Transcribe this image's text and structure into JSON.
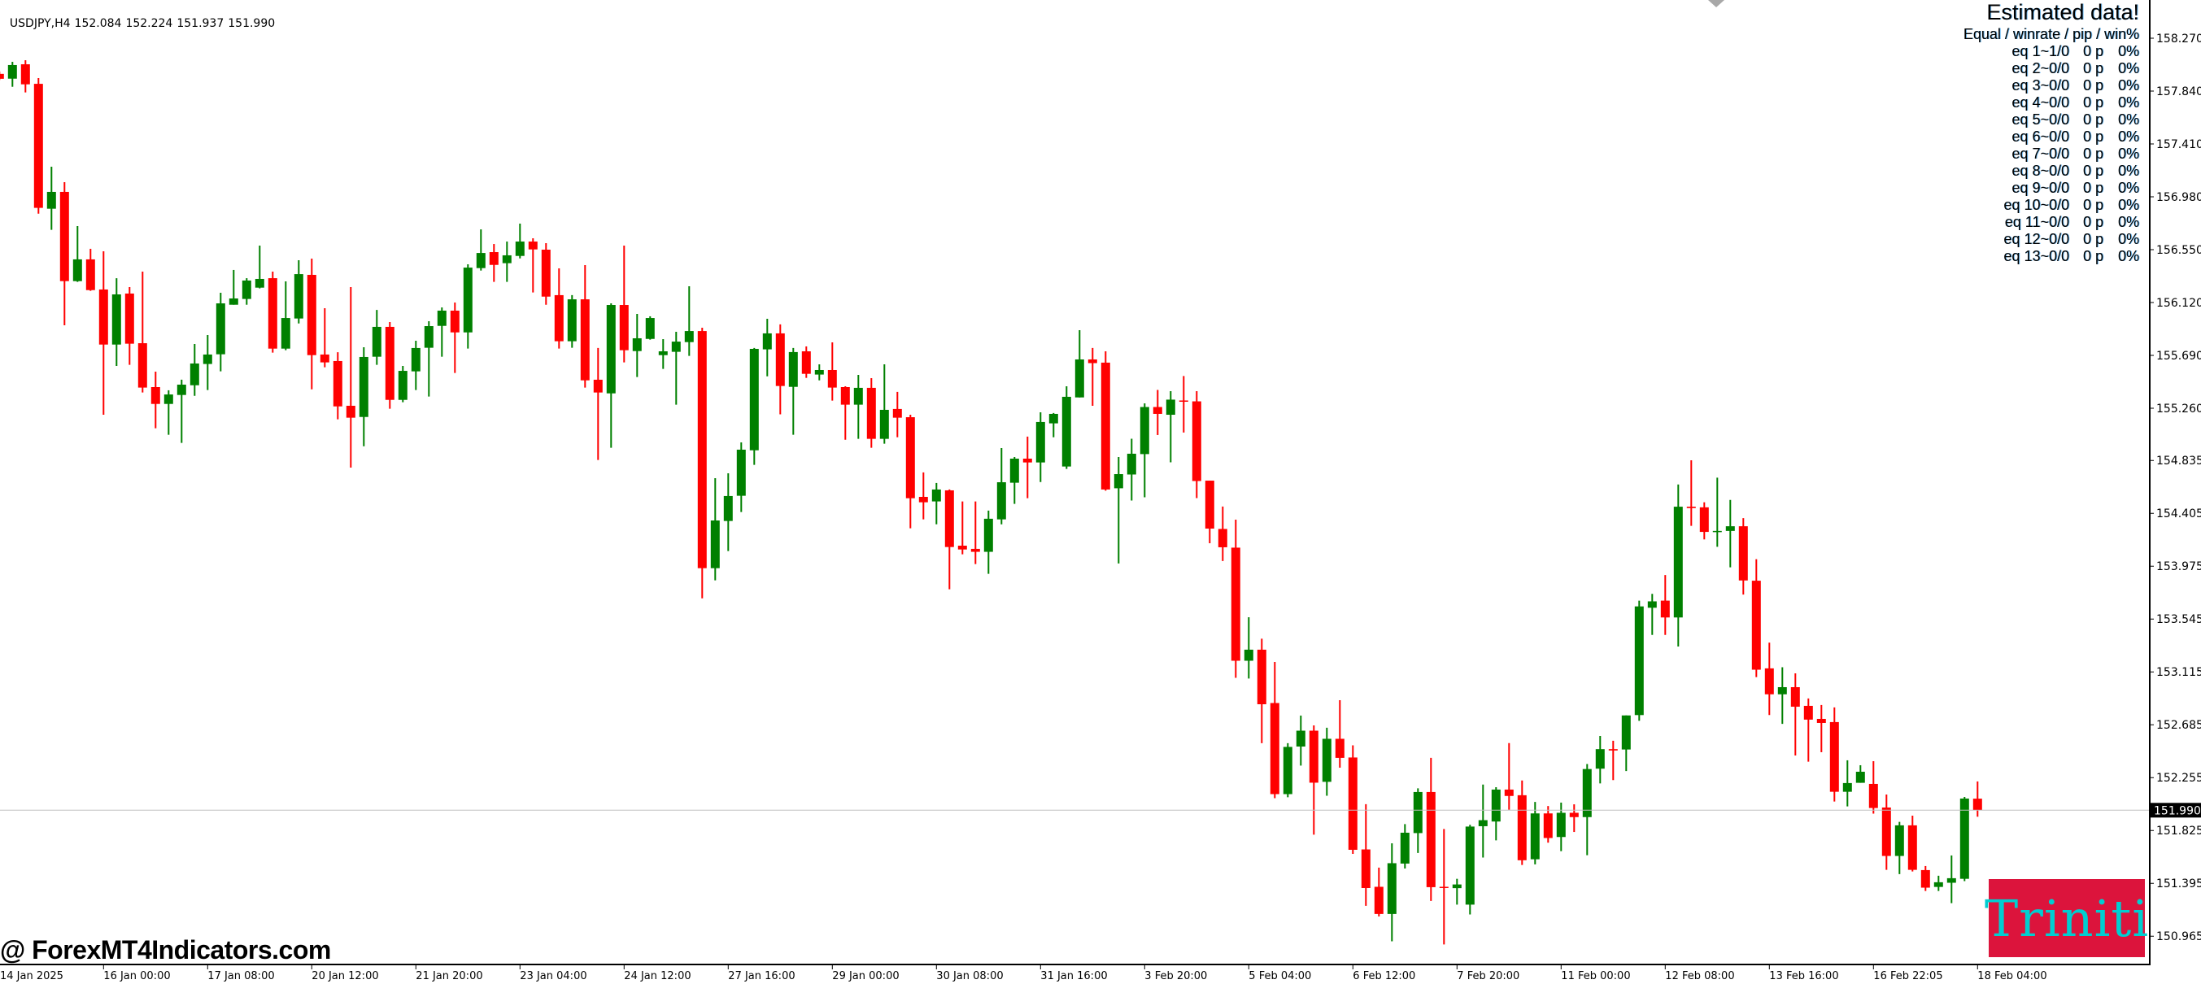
{
  "header": {
    "symbol": "USDJPY,H4",
    "ohlc": [
      "152.084",
      "152.224",
      "151.937",
      "151.990"
    ]
  },
  "indicator_panel": {
    "title": "Estimated data!",
    "subtitle": "Equal / winrate / pip / win%",
    "rows": [
      {
        "eq": "eq 1~1/0",
        "pip": "0 p",
        "win": "0%"
      },
      {
        "eq": "eq 2~0/0",
        "pip": "0 p",
        "win": "0%"
      },
      {
        "eq": "eq 3~0/0",
        "pip": "0 p",
        "win": "0%"
      },
      {
        "eq": "eq 4~0/0",
        "pip": "0 p",
        "win": "0%"
      },
      {
        "eq": "eq 5~0/0",
        "pip": "0 p",
        "win": "0%"
      },
      {
        "eq": "eq 6~0/0",
        "pip": "0 p",
        "win": "0%"
      },
      {
        "eq": "eq 7~0/0",
        "pip": "0 p",
        "win": "0%"
      },
      {
        "eq": "eq 8~0/0",
        "pip": "0 p",
        "win": "0%"
      },
      {
        "eq": "eq 9~0/0",
        "pip": "0 p",
        "win": "0%"
      },
      {
        "eq": "eq 10~0/0",
        "pip": "0 p",
        "win": "0%"
      },
      {
        "eq": "eq 11~0/0",
        "pip": "0 p",
        "win": "0%"
      },
      {
        "eq": "eq 12~0/0",
        "pip": "0 p",
        "win": "0%"
      },
      {
        "eq": "eq 13~0/0",
        "pip": "0 p",
        "win": "0%"
      }
    ]
  },
  "watermark": "@ ForexMT4Indicators.com",
  "logo_text": "Triniti",
  "colors": {
    "bull": "#008000",
    "bear": "#FF0000",
    "current_price_line": "#C0C0C0",
    "current_price_label_bg": "#000000",
    "logo_bg": "#DC143C",
    "logo_text": "#00CED1",
    "axis": "#000000"
  },
  "chart_data": {
    "type": "candlestick",
    "symbol": "USDJPY",
    "timeframe": "H4",
    "ylim": [
      150.83,
      158.34
    ],
    "grid": false,
    "current_price": "151.990",
    "y_ticks": [
      "158.270",
      "157.840",
      "157.410",
      "156.980",
      "156.550",
      "156.120",
      "155.690",
      "155.260",
      "154.835",
      "154.405",
      "153.975",
      "153.545",
      "153.115",
      "152.685",
      "152.255",
      "151.825",
      "151.395",
      "150.965"
    ],
    "x_tick_labels": [
      "14 Jan 2025",
      "16 Jan 00:00",
      "17 Jan 08:00",
      "20 Jan 12:00",
      "21 Jan 20:00",
      "23 Jan 04:00",
      "24 Jan 12:00",
      "27 Jan 16:00",
      "29 Jan 00:00",
      "30 Jan 08:00",
      "31 Jan 16:00",
      "3 Feb 20:00",
      "5 Feb 04:00",
      "6 Feb 12:00",
      "7 Feb 20:00",
      "11 Feb 00:00",
      "12 Feb 08:00",
      "13 Feb 16:00",
      "16 Feb 22:05",
      "18 Feb 04:00"
    ],
    "ohlc_fields": [
      "open",
      "high",
      "low",
      "close"
    ],
    "ohlc": [
      [
        157.98,
        158.0,
        157.93,
        157.94
      ],
      [
        157.941,
        158.078,
        157.875,
        158.052
      ],
      [
        158.058,
        158.091,
        157.829,
        157.895
      ],
      [
        157.899,
        157.946,
        156.843,
        156.89
      ],
      [
        156.883,
        157.225,
        156.711,
        157.02
      ],
      [
        157.02,
        157.099,
        155.935,
        156.294
      ],
      [
        156.294,
        156.742,
        156.288,
        156.471
      ],
      [
        156.471,
        156.557,
        156.215,
        156.221
      ],
      [
        156.226,
        156.537,
        155.207,
        155.778
      ],
      [
        155.778,
        156.318,
        155.604,
        156.186
      ],
      [
        156.193,
        156.246,
        155.613,
        155.785
      ],
      [
        155.789,
        156.371,
        155.388,
        155.428
      ],
      [
        155.432,
        155.558,
        155.097,
        155.295
      ],
      [
        155.295,
        155.406,
        155.044,
        155.372
      ],
      [
        155.368,
        155.492,
        154.978,
        155.452
      ],
      [
        155.447,
        155.783,
        155.361,
        155.624
      ],
      [
        155.62,
        155.855,
        155.408,
        155.697
      ],
      [
        155.699,
        156.199,
        155.56,
        156.113
      ],
      [
        156.102,
        156.385,
        156.102,
        156.153
      ],
      [
        156.149,
        156.318,
        156.102,
        156.299
      ],
      [
        156.241,
        156.583,
        156.235,
        156.312
      ],
      [
        156.318,
        156.371,
        155.712,
        155.745
      ],
      [
        155.745,
        156.292,
        155.732,
        155.994
      ],
      [
        155.99,
        156.464,
        155.95,
        156.351
      ],
      [
        156.345,
        156.477,
        155.414,
        155.692
      ],
      [
        155.697,
        156.074,
        155.593,
        155.633
      ],
      [
        155.644,
        155.716,
        155.17,
        155.275
      ],
      [
        155.28,
        156.246,
        154.777,
        155.183
      ],
      [
        155.189,
        155.756,
        154.951,
        155.677
      ],
      [
        155.679,
        156.06,
        155.613,
        155.922
      ],
      [
        155.922,
        155.961,
        155.256,
        155.328
      ],
      [
        155.328,
        155.604,
        155.309,
        155.564
      ],
      [
        155.56,
        155.809,
        155.408,
        155.75
      ],
      [
        155.752,
        155.968,
        155.355,
        155.928
      ],
      [
        155.93,
        156.08,
        155.679,
        156.054
      ],
      [
        156.054,
        156.12,
        155.547,
        155.877
      ],
      [
        155.877,
        156.431,
        155.745,
        156.404
      ],
      [
        156.4,
        156.715,
        156.38,
        156.523
      ],
      [
        156.53,
        156.596,
        156.288,
        156.426
      ],
      [
        156.44,
        156.616,
        156.288,
        156.504
      ],
      [
        156.499,
        156.762,
        156.479,
        156.616
      ],
      [
        156.616,
        156.643,
        156.202,
        156.552
      ],
      [
        156.55,
        156.603,
        156.102,
        156.168
      ],
      [
        156.18,
        156.398,
        155.745,
        155.805
      ],
      [
        155.805,
        156.18,
        155.752,
        156.146
      ],
      [
        156.146,
        156.424,
        155.428,
        155.487
      ],
      [
        155.492,
        155.75,
        154.839,
        155.388
      ],
      [
        155.381,
        156.113,
        154.938,
        156.1
      ],
      [
        156.1,
        156.583,
        155.633,
        155.732
      ],
      [
        155.725,
        156.027,
        155.514,
        155.829
      ],
      [
        155.824,
        156.008,
        155.818,
        155.994
      ],
      [
        155.692,
        155.822,
        155.58,
        155.723
      ],
      [
        155.719,
        155.882,
        155.289,
        155.802
      ],
      [
        155.798,
        156.252,
        155.686,
        155.888
      ],
      [
        155.888,
        155.915,
        153.714,
        153.959
      ],
      [
        153.959,
        154.691,
        153.86,
        154.347
      ],
      [
        154.343,
        154.731,
        154.098,
        154.546
      ],
      [
        154.548,
        154.982,
        154.416,
        154.923
      ],
      [
        154.918,
        155.75,
        154.799,
        155.743
      ],
      [
        155.739,
        155.988,
        155.52,
        155.869
      ],
      [
        155.869,
        155.942,
        155.21,
        155.441
      ],
      [
        155.434,
        155.75,
        155.044,
        155.717
      ],
      [
        155.723,
        155.763,
        155.507,
        155.54
      ],
      [
        155.534,
        155.617,
        155.487,
        155.571
      ],
      [
        155.571,
        155.796,
        155.322,
        155.428
      ],
      [
        155.432,
        155.439,
        155.004,
        155.289
      ],
      [
        155.289,
        155.531,
        155.011,
        155.426
      ],
      [
        155.426,
        155.505,
        154.938,
        155.011
      ],
      [
        155.011,
        155.617,
        154.971,
        155.247
      ],
      [
        155.254,
        155.393,
        155.024,
        155.183
      ],
      [
        155.187,
        155.207,
        154.283,
        154.528
      ],
      [
        154.539,
        154.738,
        154.356,
        154.495
      ],
      [
        154.502,
        154.652,
        154.316,
        154.599
      ],
      [
        154.592,
        154.599,
        153.787,
        154.131
      ],
      [
        154.142,
        154.502,
        154.072,
        154.111
      ],
      [
        154.116,
        154.502,
        153.992,
        154.092
      ],
      [
        154.092,
        154.427,
        153.913,
        154.361
      ],
      [
        154.356,
        154.936,
        154.316,
        154.658
      ],
      [
        154.654,
        154.863,
        154.482,
        154.85
      ],
      [
        154.85,
        155.029,
        154.528,
        154.819
      ],
      [
        154.819,
        155.227,
        154.66,
        155.148
      ],
      [
        155.137,
        155.221,
        155.024,
        155.214
      ],
      [
        154.786,
        155.439,
        154.766,
        155.353
      ],
      [
        155.348,
        155.895,
        155.348,
        155.657
      ],
      [
        155.657,
        155.75,
        155.28,
        155.627
      ],
      [
        155.631,
        155.723,
        154.589,
        154.599
      ],
      [
        154.609,
        154.863,
        153.997,
        154.724
      ],
      [
        154.721,
        155.012,
        154.509,
        154.89
      ],
      [
        154.887,
        155.3,
        154.536,
        155.27
      ],
      [
        155.27,
        155.409,
        155.042,
        155.214
      ],
      [
        155.207,
        155.399,
        154.82,
        155.33
      ],
      [
        155.323,
        155.522,
        155.062,
        155.313
      ],
      [
        155.316,
        155.399,
        154.529,
        154.668
      ],
      [
        154.671,
        154.671,
        154.162,
        154.281
      ],
      [
        154.278,
        154.46,
        154.017,
        154.129
      ],
      [
        154.126,
        154.354,
        153.067,
        153.206
      ],
      [
        153.206,
        153.56,
        153.061,
        153.296
      ],
      [
        153.296,
        153.385,
        152.535,
        152.852
      ],
      [
        152.862,
        153.196,
        152.088,
        152.121
      ],
      [
        152.121,
        152.535,
        152.095,
        152.505
      ],
      [
        152.508,
        152.76,
        152.353,
        152.637
      ],
      [
        152.637,
        152.68,
        151.791,
        152.214
      ],
      [
        152.221,
        152.661,
        152.108,
        152.571
      ],
      [
        152.571,
        152.885,
        152.336,
        152.416
      ],
      [
        152.419,
        152.518,
        151.635,
        151.668
      ],
      [
        151.671,
        152.039,
        151.212,
        151.357
      ],
      [
        151.367,
        151.523,
        151.126,
        151.146
      ],
      [
        151.146,
        151.721,
        150.924,
        151.559
      ],
      [
        151.556,
        151.877,
        151.516,
        151.807
      ],
      [
        151.804,
        152.168,
        151.642,
        152.138
      ],
      [
        152.138,
        152.416,
        151.252,
        151.364
      ],
      [
        151.367,
        151.837,
        150.898,
        151.36
      ],
      [
        151.356,
        151.432,
        151.222,
        151.386
      ],
      [
        151.222,
        151.871,
        151.142,
        151.857
      ],
      [
        151.86,
        152.199,
        151.605,
        151.909
      ],
      [
        151.898,
        152.177,
        151.745,
        152.158
      ],
      [
        152.158,
        152.536,
        151.994,
        152.106
      ],
      [
        152.112,
        152.232,
        151.545,
        151.583
      ],
      [
        151.591,
        152.057,
        151.55,
        151.964
      ],
      [
        151.964,
        152.024,
        151.726,
        151.764
      ],
      [
        151.772,
        152.052,
        151.657,
        151.969
      ],
      [
        151.969,
        152.038,
        151.813,
        151.934
      ],
      [
        151.934,
        152.366,
        151.624,
        152.325
      ],
      [
        152.328,
        152.594,
        152.208,
        152.487
      ],
      [
        152.487,
        152.555,
        152.235,
        152.476
      ],
      [
        152.484,
        152.761,
        152.309,
        152.761
      ],
      [
        152.764,
        153.695,
        152.717,
        153.648
      ],
      [
        153.637,
        153.75,
        153.416,
        153.689
      ],
      [
        153.695,
        153.903,
        153.416,
        153.558
      ],
      [
        153.558,
        154.64,
        153.322,
        154.459
      ],
      [
        154.459,
        154.837,
        154.303,
        154.448
      ],
      [
        154.454,
        154.495,
        154.193,
        154.254
      ],
      [
        154.254,
        154.695,
        154.133,
        154.262
      ],
      [
        154.262,
        154.514,
        153.966,
        154.3
      ],
      [
        154.3,
        154.366,
        153.744,
        153.859
      ],
      [
        153.857,
        154.032,
        153.073,
        153.133
      ],
      [
        153.144,
        153.353,
        152.764,
        152.933
      ],
      [
        152.933,
        153.153,
        152.692,
        152.991
      ],
      [
        152.991,
        153.103,
        152.435,
        152.832
      ],
      [
        152.839,
        152.899,
        152.385,
        152.727
      ],
      [
        152.733,
        152.846,
        152.462,
        152.7
      ],
      [
        152.707,
        152.826,
        152.061,
        152.14
      ],
      [
        152.14,
        152.396,
        152.021,
        152.211
      ],
      [
        152.213,
        152.356,
        152.213,
        152.303
      ],
      [
        152.204,
        152.389,
        151.962,
        152.008
      ],
      [
        152.012,
        152.118,
        151.505,
        151.618
      ],
      [
        151.618,
        151.895,
        151.47,
        151.867
      ],
      [
        151.867,
        151.946,
        151.492,
        151.505
      ],
      [
        151.503,
        151.536,
        151.333,
        151.36
      ],
      [
        151.366,
        151.457,
        151.333,
        151.404
      ],
      [
        151.4,
        151.622,
        151.234,
        151.437
      ],
      [
        151.432,
        152.098,
        151.413,
        152.085
      ],
      [
        152.084,
        152.224,
        151.937,
        151.99
      ]
    ]
  }
}
